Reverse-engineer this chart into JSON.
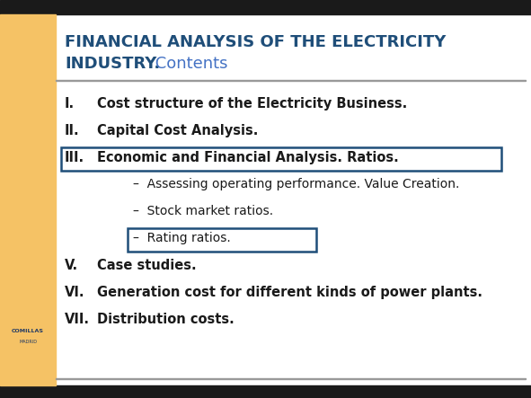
{
  "title_line1_bold": "FINANCIAL ANALYSIS OF THE ELECTRICITY",
  "title_line2_bold": "INDUSTRY.",
  "title_line2_light": " Contents",
  "title_bold_color": "#1F4E79",
  "title_light_color": "#4472C4",
  "background_color": "#FFFFFF",
  "left_bar_color": "#F5C265",
  "top_bar_color": "#1A1A1A",
  "bottom_bar_color": "#1A1A1A",
  "separator_color": "#999999",
  "items": [
    {
      "roman": "I.",
      "text": "Cost structure of the Electricity Business.",
      "sub": false,
      "boxed": false
    },
    {
      "roman": "II.",
      "text": "Capital Cost Analysis.",
      "sub": false,
      "boxed": false
    },
    {
      "roman": "III.",
      "text": "Economic and Financial Analysis. Ratios.",
      "sub": false,
      "boxed": true
    },
    {
      "roman": "",
      "text": "–  Assessing operating performance. Value Creation.",
      "sub": true,
      "boxed": false
    },
    {
      "roman": "",
      "text": "–  Stock market ratios.",
      "sub": true,
      "boxed": false
    },
    {
      "roman": "",
      "text": "–  Rating ratios.",
      "sub": true,
      "boxed": true
    },
    {
      "roman": "V.",
      "text": "Case studies.",
      "sub": false,
      "boxed": false
    },
    {
      "roman": "VI.",
      "text": "Generation cost for different kinds of power plants.",
      "sub": false,
      "boxed": false
    },
    {
      "roman": "VII.",
      "text": "Distribution costs.",
      "sub": false,
      "boxed": false
    }
  ],
  "text_color": "#1A1A1A",
  "box_edge_color": "#1F4E79",
  "figsize": [
    5.91,
    4.43
  ],
  "dpi": 100
}
